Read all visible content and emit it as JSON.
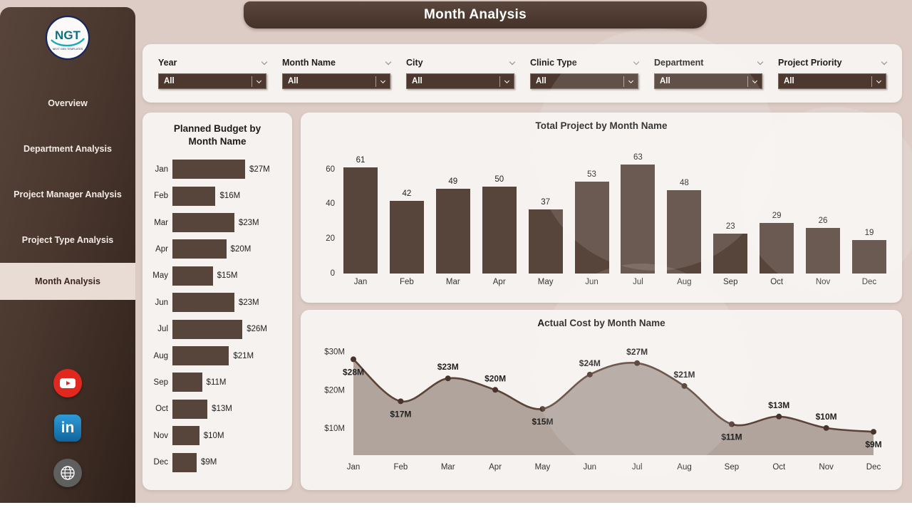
{
  "colors": {
    "accent": "#4c382e",
    "bar": "#57443a",
    "background": "#dcccc5",
    "card": "#f5f2f0",
    "area_fill": "#a5968e",
    "area_line": "#5c4337",
    "sidebar_active_bg": "#e9dcd5",
    "youtube_red": "#e0281e",
    "linkedin_blue": "#10649c"
  },
  "header": {
    "title": "Month Analysis"
  },
  "sidebar": {
    "logo": {
      "text": "NGT",
      "subtext": "NEXT GEN TEMPLATES"
    },
    "items": [
      {
        "label": "Overview",
        "active": false
      },
      {
        "label": "Department Analysis",
        "active": false
      },
      {
        "label": "Project Manager Analysis",
        "active": false
      },
      {
        "label": "Project Type Analysis",
        "active": false
      },
      {
        "label": "Month Analysis",
        "active": true
      }
    ],
    "social": [
      {
        "name": "youtube"
      },
      {
        "name": "linkedin",
        "label": "in"
      },
      {
        "name": "website"
      }
    ]
  },
  "filters": [
    {
      "label": "Year",
      "value": "All"
    },
    {
      "label": "Month Name",
      "value": "All"
    },
    {
      "label": "City",
      "value": "All"
    },
    {
      "label": "Clinic Type",
      "value": "All"
    },
    {
      "label": "Department",
      "value": "All"
    },
    {
      "label": "Project Priority",
      "value": "All"
    }
  ],
  "chart_data": [
    {
      "type": "bar",
      "orientation": "horizontal",
      "title": "Planned Budget by Month Name",
      "categories": [
        "Jan",
        "Feb",
        "Mar",
        "Apr",
        "May",
        "Jun",
        "Jul",
        "Aug",
        "Sep",
        "Oct",
        "Nov",
        "Dec"
      ],
      "values": [
        27,
        16,
        23,
        20,
        15,
        23,
        26,
        21,
        11,
        13,
        10,
        9
      ],
      "value_labels": [
        "$27M",
        "$16M",
        "$23M",
        "$20M",
        "$15M",
        "$23M",
        "$26M",
        "$21M",
        "$11M",
        "$13M",
        "$10M",
        "$9M"
      ],
      "xlim": [
        0,
        27
      ],
      "grid": false
    },
    {
      "type": "bar",
      "orientation": "vertical",
      "title": "Total Project by Month Name",
      "categories": [
        "Jan",
        "Feb",
        "Mar",
        "Apr",
        "May",
        "Jun",
        "Jul",
        "Aug",
        "Sep",
        "Oct",
        "Nov",
        "Dec"
      ],
      "values": [
        61,
        42,
        49,
        50,
        37,
        53,
        63,
        48,
        23,
        29,
        26,
        19
      ],
      "yticks": [
        0,
        20,
        40,
        60
      ],
      "ylim": [
        0,
        70
      ],
      "grid": false
    },
    {
      "type": "area",
      "title": "Actual Cost by Month Name",
      "categories": [
        "Jan",
        "Feb",
        "Mar",
        "Apr",
        "May",
        "Jun",
        "Jul",
        "Aug",
        "Sep",
        "Oct",
        "Nov",
        "Dec"
      ],
      "values": [
        28,
        17,
        23,
        20,
        15,
        24,
        27,
        21,
        11,
        13,
        10,
        9
      ],
      "value_labels": [
        "$28M",
        "$17M",
        "$23M",
        "$20M",
        "$15M",
        "$24M",
        "$27M",
        "$21M",
        "$11M",
        "$13M",
        "$10M",
        "$9M"
      ],
      "label_positions": [
        "below",
        "below",
        "above",
        "above",
        "below",
        "above",
        "above",
        "above",
        "below",
        "above",
        "above",
        "below"
      ],
      "yticks": [
        "$10M",
        "$20M",
        "$30M"
      ],
      "ytick_values": [
        10,
        20,
        30
      ],
      "ylim": [
        4,
        32
      ],
      "grid": false
    }
  ]
}
